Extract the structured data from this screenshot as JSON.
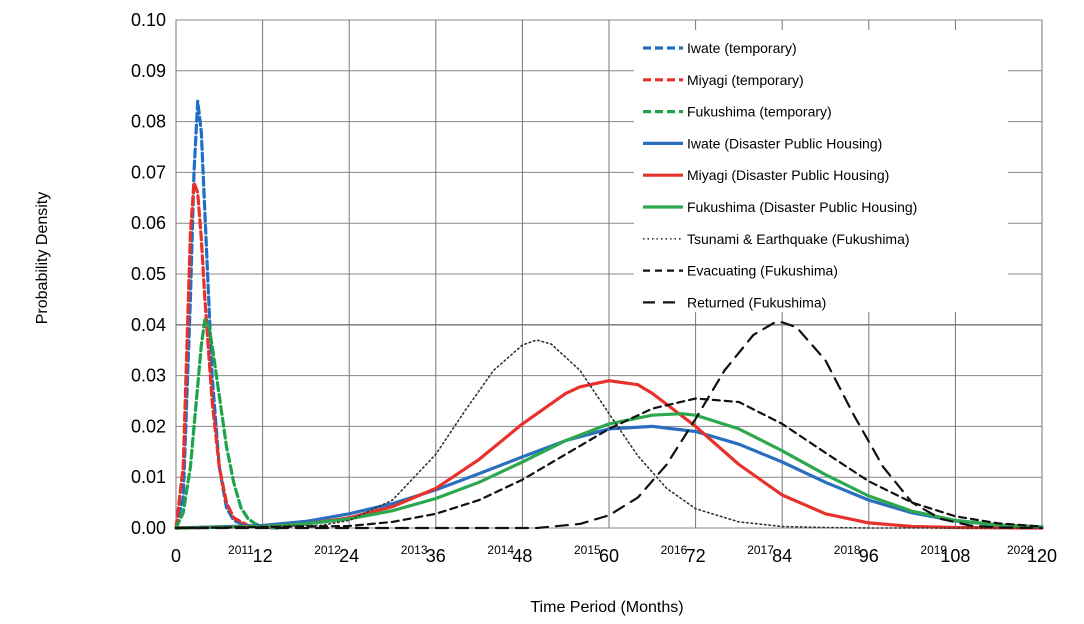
{
  "chart_data": {
    "type": "line",
    "title": "",
    "xlabel": "Time Period (Months)",
    "ylabel": "Probability Density",
    "xlim": [
      0,
      120
    ],
    "ylim": [
      0,
      0.1
    ],
    "grid": true,
    "legend_position": "top-right",
    "x_ticks": [
      "0",
      "12",
      "24",
      "36",
      "48",
      "60",
      "72",
      "84",
      "96",
      "108",
      "120"
    ],
    "y_ticks": [
      "0.00",
      "0.01",
      "0.02",
      "0.03",
      "0.04",
      "0.05",
      "0.06",
      "0.07",
      "0.08",
      "0.09",
      "0.10"
    ],
    "year_labels": [
      {
        "label": "2011",
        "x": 9
      },
      {
        "label": "2012",
        "x": 21
      },
      {
        "label": "2013",
        "x": 33
      },
      {
        "label": "2014",
        "x": 45
      },
      {
        "label": "2015",
        "x": 57
      },
      {
        "label": "2016",
        "x": 69
      },
      {
        "label": "2017",
        "x": 81
      },
      {
        "label": "2018",
        "x": 93
      },
      {
        "label": "2019",
        "x": 105
      },
      {
        "label": "2020",
        "x": 117
      }
    ],
    "series": [
      {
        "name": "Iwate (temporary)",
        "color": "#1f6fc5",
        "style": "dashed",
        "x": [
          0,
          1,
          2,
          2.5,
          3,
          3.5,
          4,
          5,
          6,
          7,
          8,
          10,
          14
        ],
        "y": [
          0,
          0.006,
          0.045,
          0.07,
          0.084,
          0.078,
          0.062,
          0.03,
          0.012,
          0.004,
          0.0015,
          0.0003,
          0
        ]
      },
      {
        "name": "Miyagi (temporary)",
        "color": "#e8312a",
        "style": "dashed",
        "x": [
          0,
          1,
          1.5,
          2,
          2.5,
          3,
          3.5,
          4,
          5,
          6,
          7,
          8,
          10,
          14
        ],
        "y": [
          0,
          0.012,
          0.035,
          0.058,
          0.068,
          0.066,
          0.057,
          0.045,
          0.025,
          0.012,
          0.005,
          0.002,
          0.0005,
          0
        ]
      },
      {
        "name": "Fukushima (temporary)",
        "color": "#1ea34a",
        "style": "dashed",
        "x": [
          0,
          1,
          2,
          3,
          3.5,
          4,
          4.5,
          5,
          6,
          7,
          8,
          9,
          10,
          11,
          12,
          14
        ],
        "y": [
          0,
          0.003,
          0.012,
          0.028,
          0.036,
          0.041,
          0.04,
          0.036,
          0.026,
          0.016,
          0.009,
          0.004,
          0.0018,
          0.0008,
          0.0003,
          0
        ]
      },
      {
        "name": "Iwate (Disaster Public Housing)",
        "color": "#2a6fbf",
        "style": "solid",
        "x": [
          0,
          12,
          18,
          24,
          30,
          36,
          42,
          48,
          54,
          60,
          66,
          72,
          78,
          84,
          90,
          96,
          102,
          108,
          114,
          120
        ],
        "y": [
          0,
          0.0005,
          0.0013,
          0.0028,
          0.0048,
          0.0075,
          0.0107,
          0.014,
          0.0172,
          0.0195,
          0.02,
          0.019,
          0.0165,
          0.013,
          0.009,
          0.0055,
          0.003,
          0.0014,
          0.0006,
          0.0002
        ]
      },
      {
        "name": "Miyagi (Disaster Public Housing)",
        "color": "#e8312a",
        "style": "solid",
        "x": [
          0,
          12,
          18,
          24,
          30,
          36,
          42,
          48,
          54,
          56,
          60,
          64,
          66,
          72,
          78,
          84,
          90,
          96,
          102,
          108,
          120
        ],
        "y": [
          0,
          0.0003,
          0.0008,
          0.002,
          0.0042,
          0.0078,
          0.0135,
          0.0205,
          0.0265,
          0.0278,
          0.029,
          0.0282,
          0.0265,
          0.02,
          0.0125,
          0.0065,
          0.0028,
          0.001,
          0.0003,
          0.0001,
          0
        ]
      },
      {
        "name": "Fukushima (Disaster Public Housing)",
        "color": "#2ea84e",
        "style": "solid",
        "x": [
          0,
          12,
          18,
          24,
          30,
          36,
          42,
          48,
          54,
          60,
          66,
          70,
          72,
          78,
          84,
          90,
          96,
          102,
          108,
          114,
          120
        ],
        "y": [
          0,
          0.0003,
          0.0008,
          0.0018,
          0.0034,
          0.0058,
          0.009,
          0.013,
          0.0172,
          0.0205,
          0.0222,
          0.0225,
          0.0222,
          0.0195,
          0.0152,
          0.0105,
          0.0063,
          0.0033,
          0.0015,
          0.0006,
          0.0002
        ]
      },
      {
        "name": "Tsunami & Earthquake (Fukushima)",
        "color": "#333333",
        "style": "dotted",
        "x": [
          0,
          20,
          24,
          30,
          36,
          40,
          44,
          48,
          50,
          52,
          56,
          60,
          64,
          68,
          72,
          78,
          84,
          90,
          96,
          108,
          120
        ],
        "y": [
          0,
          0.0005,
          0.0015,
          0.0055,
          0.0145,
          0.023,
          0.031,
          0.036,
          0.037,
          0.0362,
          0.031,
          0.0225,
          0.0142,
          0.0078,
          0.0038,
          0.0012,
          0.0003,
          0.0001,
          0,
          0,
          0
        ]
      },
      {
        "name": "Evacuating (Fukushima)",
        "color": "#111111",
        "style": "dashed-short",
        "x": [
          0,
          24,
          30,
          36,
          42,
          48,
          54,
          60,
          66,
          72,
          78,
          84,
          90,
          96,
          102,
          108,
          114,
          120
        ],
        "y": [
          0,
          0.0004,
          0.0012,
          0.0028,
          0.0055,
          0.0095,
          0.0145,
          0.0195,
          0.0235,
          0.0255,
          0.0248,
          0.0205,
          0.0148,
          0.0092,
          0.005,
          0.0023,
          0.0009,
          0.0003
        ]
      },
      {
        "name": "Returned (Fukushima)",
        "color": "#111111",
        "style": "dashed-long",
        "x": [
          0,
          50,
          56,
          60,
          64,
          68,
          72,
          76,
          80,
          83,
          84,
          86,
          90,
          94,
          98,
          102,
          106,
          110,
          114,
          120
        ],
        "y": [
          0,
          0,
          0.0008,
          0.0025,
          0.006,
          0.0125,
          0.0215,
          0.031,
          0.038,
          0.0405,
          0.0405,
          0.0395,
          0.033,
          0.022,
          0.012,
          0.005,
          0.0018,
          0.0005,
          0.0001,
          0
        ]
      }
    ]
  }
}
